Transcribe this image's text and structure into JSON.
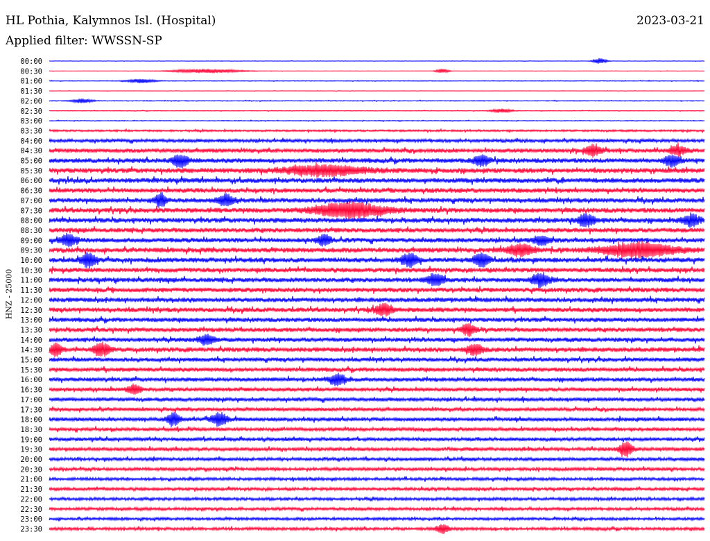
{
  "header": {
    "station": "HL Pothia, Kalymnos Isl. (Hospital)",
    "date": "2023-03-21",
    "filter": "Applied filter: WWSSN-SP"
  },
  "axis": {
    "ylabel": "HNZ - 25000"
  },
  "colors": {
    "even_trace": "#0000ff",
    "odd_trace": "#ff0033",
    "background": "#ffffff"
  },
  "chart_data": {
    "type": "line",
    "title": "HL Pothia, Kalymnos Isl. (Hospital)",
    "xlabel": "",
    "ylabel": "HNZ - 25000",
    "grid": false,
    "legend": "none",
    "row_labels": [
      "00:00",
      "00:30",
      "01:00",
      "01:30",
      "02:00",
      "02:30",
      "03:00",
      "03:30",
      "04:00",
      "04:30",
      "05:00",
      "05:30",
      "06:00",
      "06:30",
      "07:00",
      "07:30",
      "08:00",
      "08:30",
      "09:00",
      "09:30",
      "10:00",
      "10:30",
      "11:00",
      "11:30",
      "12:00",
      "12:30",
      "13:00",
      "13:30",
      "14:00",
      "14:30",
      "15:00",
      "15:30",
      "16:00",
      "16:30",
      "17:00",
      "17:30",
      "18:00",
      "18:30",
      "19:00",
      "19:30",
      "20:00",
      "20:30",
      "21:00",
      "21:30",
      "22:00",
      "22:30",
      "23:00",
      "23:30"
    ],
    "noise_level": [
      0.3,
      0.3,
      0.5,
      0.3,
      0.6,
      0.5,
      0.6,
      1.4,
      2.4,
      3.0,
      3.4,
      3.6,
      3.6,
      3.4,
      3.4,
      3.6,
      3.6,
      3.4,
      3.4,
      3.6,
      3.6,
      3.4,
      3.4,
      3.4,
      3.4,
      3.4,
      3.2,
      3.2,
      3.2,
      3.4,
      3.0,
      3.0,
      3.0,
      2.8,
      2.8,
      2.6,
      2.8,
      2.6,
      2.6,
      2.6,
      2.4,
      2.4,
      2.2,
      2.2,
      2.2,
      2.2,
      2.0,
      2.2
    ],
    "events": [
      {
        "row": 0,
        "pos": 0.84,
        "amp": 4,
        "width": 0.01
      },
      {
        "row": 1,
        "pos": 0.24,
        "amp": 3,
        "width": 0.05
      },
      {
        "row": 1,
        "pos": 0.6,
        "amp": 3,
        "width": 0.01
      },
      {
        "row": 2,
        "pos": 0.14,
        "amp": 3,
        "width": 0.02
      },
      {
        "row": 4,
        "pos": 0.05,
        "amp": 3,
        "width": 0.015
      },
      {
        "row": 5,
        "pos": 0.69,
        "amp": 3,
        "width": 0.015
      },
      {
        "row": 9,
        "pos": 0.83,
        "amp": 8,
        "width": 0.012
      },
      {
        "row": 9,
        "pos": 0.96,
        "amp": 7,
        "width": 0.012
      },
      {
        "row": 10,
        "pos": 0.2,
        "amp": 9,
        "width": 0.012
      },
      {
        "row": 10,
        "pos": 0.66,
        "amp": 8,
        "width": 0.012
      },
      {
        "row": 10,
        "pos": 0.95,
        "amp": 8,
        "width": 0.012
      },
      {
        "row": 11,
        "pos": 0.42,
        "amp": 7,
        "width": 0.06
      },
      {
        "row": 14,
        "pos": 0.17,
        "amp": 10,
        "width": 0.008
      },
      {
        "row": 14,
        "pos": 0.27,
        "amp": 8,
        "width": 0.012
      },
      {
        "row": 15,
        "pos": 0.46,
        "amp": 11,
        "width": 0.05
      },
      {
        "row": 16,
        "pos": 0.82,
        "amp": 9,
        "width": 0.012
      },
      {
        "row": 16,
        "pos": 0.98,
        "amp": 9,
        "width": 0.012
      },
      {
        "row": 18,
        "pos": 0.03,
        "amp": 8,
        "width": 0.012
      },
      {
        "row": 18,
        "pos": 0.42,
        "amp": 8,
        "width": 0.01
      },
      {
        "row": 18,
        "pos": 0.75,
        "amp": 7,
        "width": 0.012
      },
      {
        "row": 19,
        "pos": 0.72,
        "amp": 8,
        "width": 0.02
      },
      {
        "row": 19,
        "pos": 0.9,
        "amp": 10,
        "width": 0.055
      },
      {
        "row": 20,
        "pos": 0.06,
        "amp": 11,
        "width": 0.01
      },
      {
        "row": 20,
        "pos": 0.55,
        "amp": 10,
        "width": 0.012
      },
      {
        "row": 20,
        "pos": 0.66,
        "amp": 9,
        "width": 0.012
      },
      {
        "row": 22,
        "pos": 0.59,
        "amp": 8,
        "width": 0.012
      },
      {
        "row": 22,
        "pos": 0.75,
        "amp": 9,
        "width": 0.015
      },
      {
        "row": 25,
        "pos": 0.51,
        "amp": 9,
        "width": 0.012
      },
      {
        "row": 27,
        "pos": 0.64,
        "amp": 8,
        "width": 0.01
      },
      {
        "row": 28,
        "pos": 0.24,
        "amp": 7,
        "width": 0.012
      },
      {
        "row": 29,
        "pos": 0.01,
        "amp": 10,
        "width": 0.008
      },
      {
        "row": 29,
        "pos": 0.08,
        "amp": 10,
        "width": 0.012
      },
      {
        "row": 29,
        "pos": 0.65,
        "amp": 8,
        "width": 0.012
      },
      {
        "row": 32,
        "pos": 0.44,
        "amp": 8,
        "width": 0.012
      },
      {
        "row": 33,
        "pos": 0.13,
        "amp": 7,
        "width": 0.01
      },
      {
        "row": 36,
        "pos": 0.19,
        "amp": 9,
        "width": 0.01
      },
      {
        "row": 36,
        "pos": 0.26,
        "amp": 10,
        "width": 0.012
      },
      {
        "row": 39,
        "pos": 0.88,
        "amp": 11,
        "width": 0.01
      },
      {
        "row": 47,
        "pos": 0.6,
        "amp": 6,
        "width": 0.01
      }
    ]
  }
}
